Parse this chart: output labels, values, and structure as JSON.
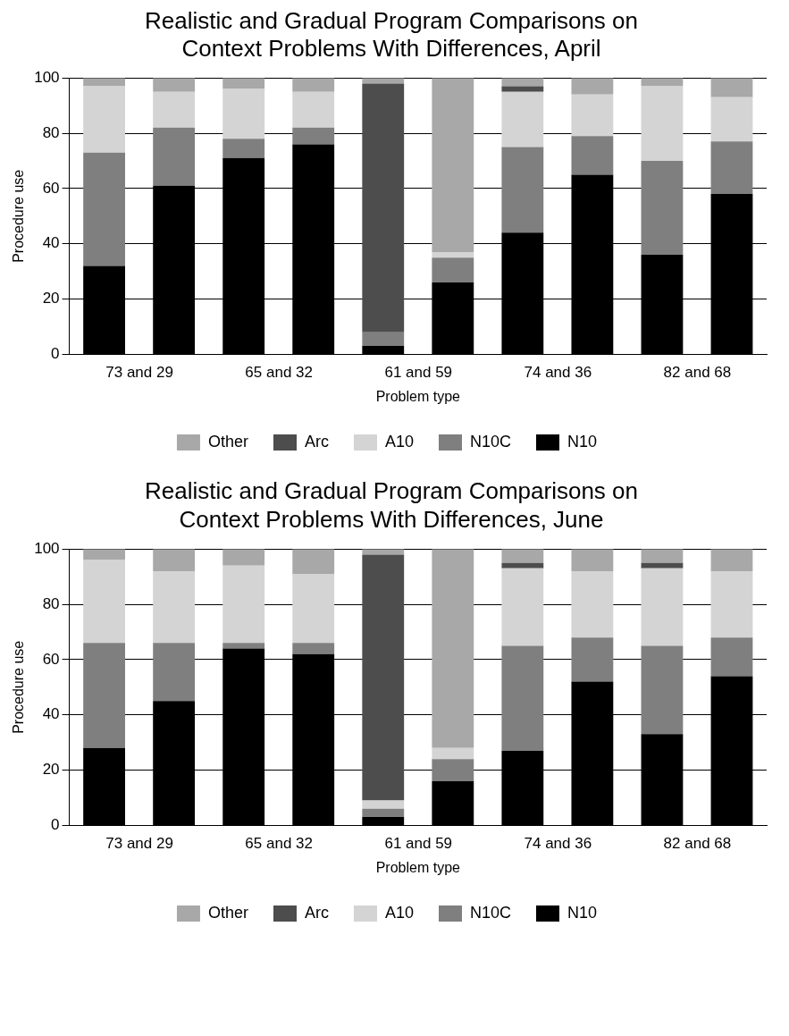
{
  "chart_data": [
    {
      "type": "bar",
      "title": "Realistic and Gradual Program Comparisons on Context Problems With Differences, April",
      "xlabel": "Problem type",
      "ylabel": "Procedure use",
      "categories": [
        "73 and 29",
        null,
        "65 and 32",
        null,
        "61 and 59",
        null,
        "74 and 36",
        null,
        "82 and 68",
        null
      ],
      "stacked": true,
      "ylim": [
        0,
        100
      ],
      "yticks": [
        0,
        20,
        40,
        60,
        80,
        100
      ],
      "grid": "y",
      "legend": "bottom",
      "series": [
        {
          "name": "N10",
          "color": "#000000",
          "values": [
            32,
            61,
            71,
            76,
            3,
            26,
            44,
            65,
            36,
            58
          ]
        },
        {
          "name": "N10C",
          "color": "#7f7f7f",
          "values": [
            41,
            21,
            7,
            6,
            5,
            9,
            31,
            14,
            34,
            19
          ]
        },
        {
          "name": "A10",
          "color": "#d4d4d4",
          "values": [
            24,
            13,
            18,
            13,
            0,
            2,
            20,
            15,
            27,
            16
          ]
        },
        {
          "name": "Arc",
          "color": "#4d4d4d",
          "values": [
            0,
            0,
            0,
            0,
            90,
            0,
            2,
            0,
            0,
            0
          ]
        },
        {
          "name": "Other",
          "color": "#a8a8a8",
          "values": [
            3,
            5,
            4,
            5,
            2,
            63,
            3,
            6,
            3,
            7
          ]
        }
      ]
    },
    {
      "type": "bar",
      "title": "Realistic and Gradual Program Comparisons on Context Problems With Differences, June",
      "xlabel": "Problem type",
      "ylabel": "Procedure use",
      "categories": [
        "73 and 29",
        null,
        "65 and 32",
        null,
        "61 and 59",
        null,
        "74 and 36",
        null,
        "82 and 68",
        null
      ],
      "stacked": true,
      "ylim": [
        0,
        100
      ],
      "yticks": [
        0,
        20,
        40,
        60,
        80,
        100
      ],
      "grid": "y",
      "legend": "bottom",
      "series": [
        {
          "name": "N10",
          "color": "#000000",
          "values": [
            28,
            45,
            64,
            62,
            3,
            16,
            27,
            52,
            33,
            54
          ]
        },
        {
          "name": "N10C",
          "color": "#7f7f7f",
          "values": [
            38,
            21,
            2,
            4,
            3,
            8,
            38,
            16,
            32,
            14
          ]
        },
        {
          "name": "A10",
          "color": "#d4d4d4",
          "values": [
            30,
            26,
            28,
            25,
            3,
            4,
            28,
            24,
            28,
            24
          ]
        },
        {
          "name": "Arc",
          "color": "#4d4d4d",
          "values": [
            0,
            0,
            0,
            0,
            89,
            0,
            2,
            0,
            2,
            0
          ]
        },
        {
          "name": "Other",
          "color": "#a8a8a8",
          "values": [
            4,
            8,
            6,
            9,
            2,
            72,
            5,
            8,
            5,
            8
          ]
        }
      ]
    }
  ]
}
